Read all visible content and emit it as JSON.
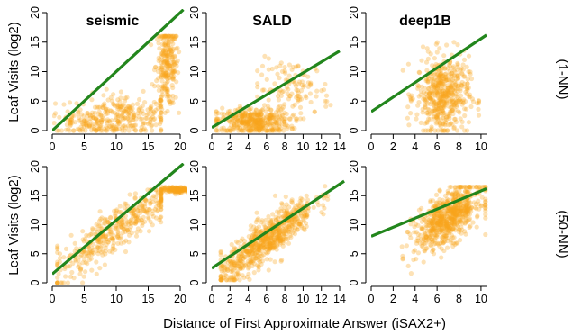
{
  "labels": {
    "ylabel": "Leaf Visits (log2)",
    "xlabel": "Distance of First Approximate Answer (iSAX2+)",
    "row_labels": [
      "(1-NN)",
      "(50-NN)"
    ]
  },
  "colors": {
    "points": "#f8a51c",
    "fit": "#22861c"
  },
  "chart_data": [
    {
      "type": "scatter",
      "title": "seismic",
      "row": 0,
      "col": 0,
      "xlim": [
        0,
        20
      ],
      "ylim": [
        0,
        20
      ],
      "xticks": [
        0,
        5,
        10,
        15,
        20
      ],
      "yticks": [
        0,
        5,
        10,
        15,
        20
      ],
      "fit": {
        "x": [
          0,
          20.5
        ],
        "y": [
          0,
          20.5
        ]
      },
      "clusters": [
        {
          "cx": 11,
          "sx": 4,
          "cy": 2.5,
          "sy": 1.8,
          "n": 260,
          "xmin": 0.5,
          "xmax": 17,
          "ymin": 0,
          "ymax": 8
        },
        {
          "cx": 18,
          "sx": 0.9,
          "cy": 11,
          "sy": 3.5,
          "n": 240,
          "xmin": 15,
          "xmax": 19.8,
          "ymin": 3,
          "ymax": 16
        },
        {
          "cx": 5,
          "sx": 3,
          "cy": 1.2,
          "sy": 0.9,
          "n": 80,
          "xmin": 0.3,
          "xmax": 12,
          "ymin": 0,
          "ymax": 5
        }
      ]
    },
    {
      "type": "scatter",
      "title": "SALD",
      "row": 0,
      "col": 1,
      "xlim": [
        0,
        14
      ],
      "ylim": [
        0,
        20
      ],
      "xticks": [
        0,
        2,
        4,
        6,
        8,
        10,
        12,
        14
      ],
      "yticks": [
        0,
        5,
        10,
        15,
        20
      ],
      "fit": {
        "x": [
          0,
          14
        ],
        "y": [
          0.5,
          13.5
        ]
      },
      "clusters": [
        {
          "cx": 4.5,
          "sx": 2,
          "cy": 1.5,
          "sy": 1.2,
          "n": 400,
          "xmin": 0.5,
          "xmax": 10,
          "ymin": 0,
          "ymax": 6
        },
        {
          "cx": 9,
          "sx": 2,
          "cy": 7,
          "sy": 2.5,
          "n": 120,
          "xmin": 5,
          "xmax": 13,
          "ymin": 2,
          "ymax": 16
        }
      ]
    },
    {
      "type": "scatter",
      "title": "deep1B",
      "row": 0,
      "col": 2,
      "xlim": [
        0,
        10.5
      ],
      "ylim": [
        0,
        20
      ],
      "xticks": [
        0,
        2,
        4,
        6,
        8,
        10
      ],
      "yticks": [
        0,
        5,
        10,
        15,
        20
      ],
      "fit": {
        "x": [
          0,
          10.5
        ],
        "y": [
          3.2,
          16.2
        ]
      },
      "clusters": [
        {
          "cx": 6.5,
          "sx": 1.2,
          "cy": 6,
          "sy": 3.3,
          "n": 520,
          "xmin": 2,
          "xmax": 9.8,
          "ymin": 0,
          "ymax": 15
        }
      ]
    },
    {
      "type": "scatter",
      "title": "",
      "row": 1,
      "col": 0,
      "xlim": [
        0,
        20
      ],
      "ylim": [
        0,
        20
      ],
      "xticks": [
        0,
        5,
        10,
        15,
        20
      ],
      "yticks": [
        0,
        5,
        10,
        15,
        20
      ],
      "fit": {
        "x": [
          0,
          20.5
        ],
        "y": [
          1.5,
          20.5
        ]
      },
      "clusters": [
        {
          "cx": 10,
          "sx": 5,
          "cy": null,
          "sy": 2,
          "n": 420,
          "xmin": 0.8,
          "xmax": 17,
          "ymin": 0,
          "ymax": 16,
          "follow": [
            0.78,
            1.5
          ]
        },
        {
          "cx": 19.5,
          "sx": 1.2,
          "cy": 16,
          "sy": 0.25,
          "n": 160,
          "xmin": 17,
          "xmax": 21.8,
          "ymin": 14.5,
          "ymax": 16.5
        }
      ]
    },
    {
      "type": "scatter",
      "title": "",
      "row": 1,
      "col": 1,
      "xlim": [
        0,
        14
      ],
      "ylim": [
        0,
        20
      ],
      "xticks": [
        0,
        2,
        4,
        6,
        8,
        10,
        12,
        14
      ],
      "yticks": [
        0,
        5,
        10,
        15,
        20
      ],
      "fit": {
        "x": [
          0,
          14.5
        ],
        "y": [
          2.5,
          17.5
        ]
      },
      "clusters": [
        {
          "cx": 6,
          "sx": 2.6,
          "cy": null,
          "sy": 1.8,
          "n": 700,
          "xmin": 1,
          "xmax": 14,
          "ymin": 0.5,
          "ymax": 17,
          "follow": [
            1.2,
            0.2
          ]
        }
      ]
    },
    {
      "type": "scatter",
      "title": "",
      "row": 1,
      "col": 2,
      "xlim": [
        0,
        10.5
      ],
      "ylim": [
        0,
        20
      ],
      "xticks": [
        0,
        2,
        4,
        6,
        8,
        10
      ],
      "yticks": [
        0,
        5,
        10,
        15,
        20
      ],
      "fit": {
        "x": [
          0,
          10.5
        ],
        "y": [
          8,
          16.2
        ]
      },
      "clusters": [
        {
          "cx": 7,
          "sx": 1.5,
          "cy": null,
          "sy": 2.2,
          "n": 700,
          "xmin": 2,
          "xmax": 10.4,
          "ymin": 1,
          "ymax": 16.5,
          "follow": [
            1.1,
            3.5
          ]
        }
      ]
    }
  ]
}
